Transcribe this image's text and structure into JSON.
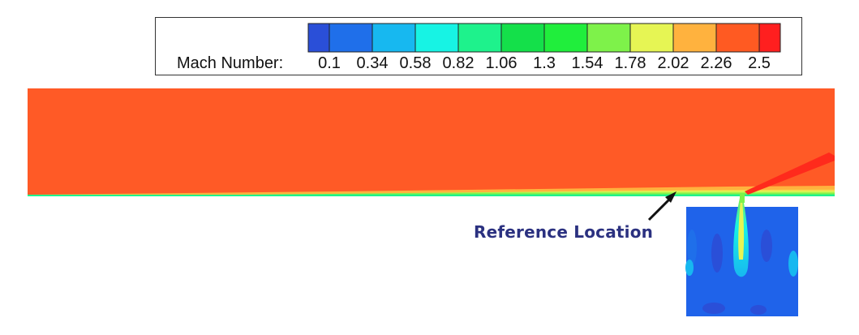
{
  "legend": {
    "title": "Mach Number:",
    "ticks": [
      "0.1",
      "0.34",
      "0.58",
      "0.82",
      "1.06",
      "1.3",
      "1.54",
      "1.78",
      "2.02",
      "2.26",
      "2.5"
    ],
    "colors": [
      "#2a4fd8",
      "#1f6fea",
      "#17b8f0",
      "#17f3e4",
      "#1ef28c",
      "#14e04a",
      "#20ee3c",
      "#7ef24a",
      "#e6f554",
      "#ffb23e",
      "#ff5a22",
      "#ff1f1f"
    ]
  },
  "field": {
    "freestream_color": "#ff5a26",
    "jet_color": "#ff2a1c",
    "crossflow_region_color": "#1f63ea"
  },
  "annotation": {
    "label": "Reference Location",
    "color": "#2b3180"
  }
}
